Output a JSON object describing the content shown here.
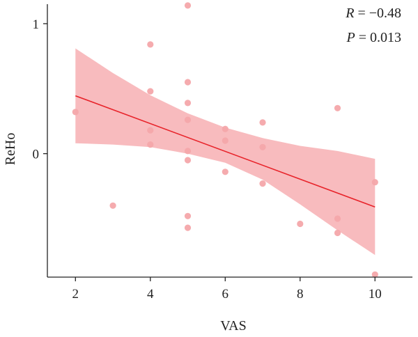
{
  "chart_data": {
    "type": "scatter",
    "xlabel": "VAS",
    "ylabel": "ReHo",
    "xlim": [
      1.25,
      11
    ],
    "ylim": [
      -0.95,
      1.15
    ],
    "xticks": [
      2,
      4,
      6,
      8,
      10
    ],
    "yticks": [
      0,
      1
    ],
    "grid": false,
    "points": [
      {
        "x": 2,
        "y": 0.32
      },
      {
        "x": 3,
        "y": -0.4
      },
      {
        "x": 4,
        "y": 0.84
      },
      {
        "x": 4,
        "y": 0.48
      },
      {
        "x": 4,
        "y": 0.18
      },
      {
        "x": 4,
        "y": 0.07
      },
      {
        "x": 5,
        "y": 1.14
      },
      {
        "x": 5,
        "y": 0.55
      },
      {
        "x": 5,
        "y": 0.39
      },
      {
        "x": 5,
        "y": 0.26
      },
      {
        "x": 5,
        "y": 0.02
      },
      {
        "x": 5,
        "y": -0.05
      },
      {
        "x": 5,
        "y": -0.48
      },
      {
        "x": 5,
        "y": -0.57
      },
      {
        "x": 6,
        "y": 0.19
      },
      {
        "x": 6,
        "y": 0.1
      },
      {
        "x": 6,
        "y": -0.14
      },
      {
        "x": 7,
        "y": 0.24
      },
      {
        "x": 7,
        "y": 0.05
      },
      {
        "x": 7,
        "y": -0.23
      },
      {
        "x": 8,
        "y": -0.54
      },
      {
        "x": 9,
        "y": 0.35
      },
      {
        "x": 9,
        "y": -0.5
      },
      {
        "x": 9,
        "y": -0.61
      },
      {
        "x": 10,
        "y": -0.22
      },
      {
        "x": 10,
        "y": -0.93
      }
    ],
    "fit_line": {
      "x": [
        2,
        10
      ],
      "y": [
        0.445,
        -0.41
      ]
    },
    "confidence_band": {
      "x": [
        2,
        3,
        4,
        5,
        6,
        7,
        8,
        9,
        10
      ],
      "upper": [
        0.81,
        0.62,
        0.45,
        0.31,
        0.2,
        0.12,
        0.06,
        0.02,
        -0.04
      ],
      "lower": [
        0.08,
        0.07,
        0.05,
        0.0,
        -0.07,
        -0.2,
        -0.39,
        -0.59,
        -0.78
      ]
    },
    "annotations": {
      "r_symbol": "R",
      "r_value": " = −0.48",
      "p_symbol": "P",
      "p_value": " = 0.013"
    },
    "colors": {
      "points": "#f4a6aa",
      "fit_line": "#e8232a",
      "band": "#f8b7ba",
      "axis": "#222222"
    }
  }
}
